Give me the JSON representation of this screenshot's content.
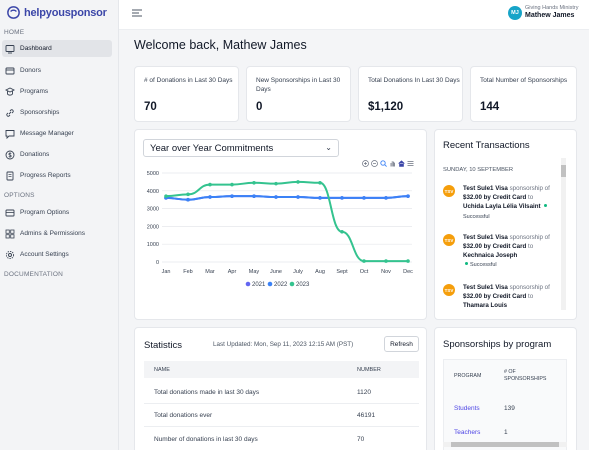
{
  "brand": {
    "logo_text": "helpyousponsor"
  },
  "sidebar": {
    "sections": {
      "home": "HOME",
      "options": "OPTIONS",
      "documentation": "DOCUMENTATION"
    },
    "home_items": [
      {
        "label": "Dashboard",
        "icon": "dashboard-icon",
        "active": true
      },
      {
        "label": "Donors",
        "icon": "donors-icon"
      },
      {
        "label": "Programs",
        "icon": "programs-icon"
      },
      {
        "label": "Sponsorships",
        "icon": "link-icon"
      },
      {
        "label": "Message Manager",
        "icon": "message-icon"
      },
      {
        "label": "Donations",
        "icon": "donations-icon"
      },
      {
        "label": "Progress Reports",
        "icon": "reports-icon"
      }
    ],
    "option_items": [
      {
        "label": "Program Options",
        "icon": "program-options-icon"
      },
      {
        "label": "Admins & Permissions",
        "icon": "admins-icon"
      },
      {
        "label": "Account Settings",
        "icon": "settings-icon"
      }
    ]
  },
  "topbar": {
    "avatar_initials": "MJ",
    "org_name": "Giving Hands Ministry",
    "user_name": "Mathew James"
  },
  "welcome": "Welcome back, Mathew James",
  "stats": [
    {
      "label": "# of Donations in Last 30 Days",
      "value": "70"
    },
    {
      "label": "New Sponsorships in Last 30 Days",
      "value": "0"
    },
    {
      "label": "Total Donations In Last 30 Days",
      "value": "$1,120"
    },
    {
      "label": "Total Number of Sponsorships",
      "value": "144"
    }
  ],
  "chart_select": "Year over Year Commitments",
  "chart_data": {
    "type": "line",
    "title": "",
    "categories": [
      "Jan",
      "Feb",
      "Mar",
      "Apr",
      "May",
      "June",
      "July",
      "Aug",
      "Sept",
      "Oct",
      "Nov",
      "Dec"
    ],
    "yticks": [
      "0",
      "1000",
      "2000",
      "3000",
      "4000",
      "5000"
    ],
    "ylim": [
      0,
      5000
    ],
    "legend_position": "bottom",
    "series": [
      {
        "name": "2021",
        "color": "#6366f1",
        "values": [
          3600,
          3500,
          3650,
          3700,
          3700,
          3650,
          3650,
          3600,
          3600,
          3600,
          3600,
          3700
        ]
      },
      {
        "name": "2022",
        "color": "#3b82f6",
        "values": [
          3600,
          3500,
          3650,
          3700,
          3700,
          3650,
          3650,
          3600,
          3600,
          3600,
          3600,
          3700
        ]
      },
      {
        "name": "2023",
        "color": "#34c38f",
        "values": [
          3700,
          3800,
          4350,
          4350,
          4450,
          4400,
          4500,
          4450,
          1700,
          50,
          50,
          50
        ]
      }
    ]
  },
  "transactions": {
    "title": "Recent Transactions",
    "date": "SUNDAY, 10 SEPTEMBER",
    "items": [
      {
        "initials": "TSV",
        "name": "Test Sule1 Visa",
        "verb": "sponsorship",
        "of": "of",
        "amount": "$32.00 by Credit Card",
        "to": "to",
        "recipient": "Uchida Layla Lélia Vilsaint",
        "status": "Successful"
      },
      {
        "initials": "TSV",
        "name": "Test Sule1 Visa",
        "verb": "sponsorship",
        "of": "of",
        "amount": "$32.00 by Credit Card",
        "to": "to",
        "recipient": "Kechnaica Joseph",
        "status": "Successful"
      },
      {
        "initials": "TSV",
        "name": "Test Sule1 Visa",
        "verb": "sponsorship",
        "of": "of",
        "amount": "$32.00 by Credit Card",
        "to": "to",
        "recipient": "Thamara Louis",
        "status": ""
      }
    ]
  },
  "statistics": {
    "title": "Statistics",
    "updated": "Last Updated: Mon, Sep 11, 2023 12:15 AM (PST)",
    "refresh": "Refresh",
    "columns": [
      "NAME",
      "NUMBER"
    ],
    "rows": [
      {
        "name": "Total donations made in last 30 days",
        "number": "1120"
      },
      {
        "name": "Total donations ever",
        "number": "46191"
      },
      {
        "name": "Number of donations in last 30 days",
        "number": "70"
      }
    ]
  },
  "sponsorships_by_program": {
    "title": "Sponsorships by program",
    "columns": [
      "PROGRAM",
      "# OF SPONSORSHIPS"
    ],
    "rows": [
      {
        "program": "Students",
        "count": "139"
      },
      {
        "program": "Teachers",
        "count": "1"
      }
    ],
    "link_color": "#4f46e5"
  },
  "colors": {
    "accent": "#3b46a8",
    "primary_blue": "#3b82f6",
    "success": "#10b981",
    "avatar": "#17a4c8",
    "tx_avatar": "#f59e0b"
  }
}
